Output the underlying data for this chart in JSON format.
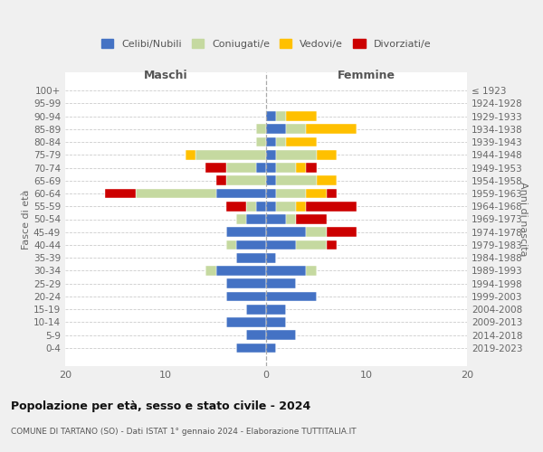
{
  "age_groups": [
    "0-4",
    "5-9",
    "10-14",
    "15-19",
    "20-24",
    "25-29",
    "30-34",
    "35-39",
    "40-44",
    "45-49",
    "50-54",
    "55-59",
    "60-64",
    "65-69",
    "70-74",
    "75-79",
    "80-84",
    "85-89",
    "90-94",
    "95-99",
    "100+"
  ],
  "birth_years": [
    "2019-2023",
    "2014-2018",
    "2009-2013",
    "2004-2008",
    "1999-2003",
    "1994-1998",
    "1989-1993",
    "1984-1988",
    "1979-1983",
    "1974-1978",
    "1969-1973",
    "1964-1968",
    "1959-1963",
    "1954-1958",
    "1949-1953",
    "1944-1948",
    "1939-1943",
    "1934-1938",
    "1929-1933",
    "1924-1928",
    "≤ 1923"
  ],
  "colors": {
    "celibi": "#4472c4",
    "coniugati": "#c5d9a0",
    "vedovi": "#ffc000",
    "divorziati": "#cc0000"
  },
  "maschi": {
    "celibi": [
      3,
      2,
      4,
      2,
      4,
      4,
      5,
      3,
      3,
      4,
      2,
      1,
      5,
      0,
      1,
      0,
      0,
      0,
      0,
      0,
      0
    ],
    "coniugati": [
      0,
      0,
      0,
      0,
      0,
      0,
      1,
      0,
      1,
      0,
      1,
      1,
      8,
      4,
      3,
      7,
      1,
      1,
      0,
      0,
      0
    ],
    "vedovi": [
      0,
      0,
      0,
      0,
      0,
      0,
      0,
      0,
      0,
      0,
      0,
      0,
      0,
      0,
      0,
      1,
      0,
      0,
      0,
      0,
      0
    ],
    "divorziati": [
      0,
      0,
      0,
      0,
      0,
      0,
      0,
      0,
      0,
      0,
      0,
      2,
      3,
      1,
      2,
      0,
      0,
      0,
      0,
      0,
      0
    ]
  },
  "femmine": {
    "celibi": [
      1,
      3,
      2,
      2,
      5,
      3,
      4,
      1,
      3,
      4,
      2,
      1,
      1,
      1,
      1,
      1,
      1,
      2,
      1,
      0,
      0
    ],
    "coniugati": [
      0,
      0,
      0,
      0,
      0,
      0,
      1,
      0,
      3,
      2,
      1,
      2,
      3,
      4,
      2,
      4,
      1,
      2,
      1,
      0,
      0
    ],
    "vedovi": [
      0,
      0,
      0,
      0,
      0,
      0,
      0,
      0,
      0,
      0,
      0,
      1,
      2,
      2,
      1,
      2,
      3,
      5,
      3,
      0,
      0
    ],
    "divorziati": [
      0,
      0,
      0,
      0,
      0,
      0,
      0,
      0,
      1,
      3,
      3,
      5,
      1,
      0,
      1,
      0,
      0,
      0,
      0,
      0,
      0
    ]
  },
  "title": "Popolazione per età, sesso e stato civile - 2024",
  "subtitle": "COMUNE DI TARTANO (SO) - Dati ISTAT 1° gennaio 2024 - Elaborazione TUTTITALIA.IT",
  "xlabel_left": "Maschi",
  "xlabel_right": "Femmine",
  "ylabel_left": "Fasce di età",
  "ylabel_right": "Anni di nascita",
  "xlim": 20,
  "bg_color": "#f0f0f0",
  "plot_bg": "#ffffff",
  "legend_labels": [
    "Celibi/Nubili",
    "Coniugati/e",
    "Vedovi/e",
    "Divorziati/e"
  ]
}
